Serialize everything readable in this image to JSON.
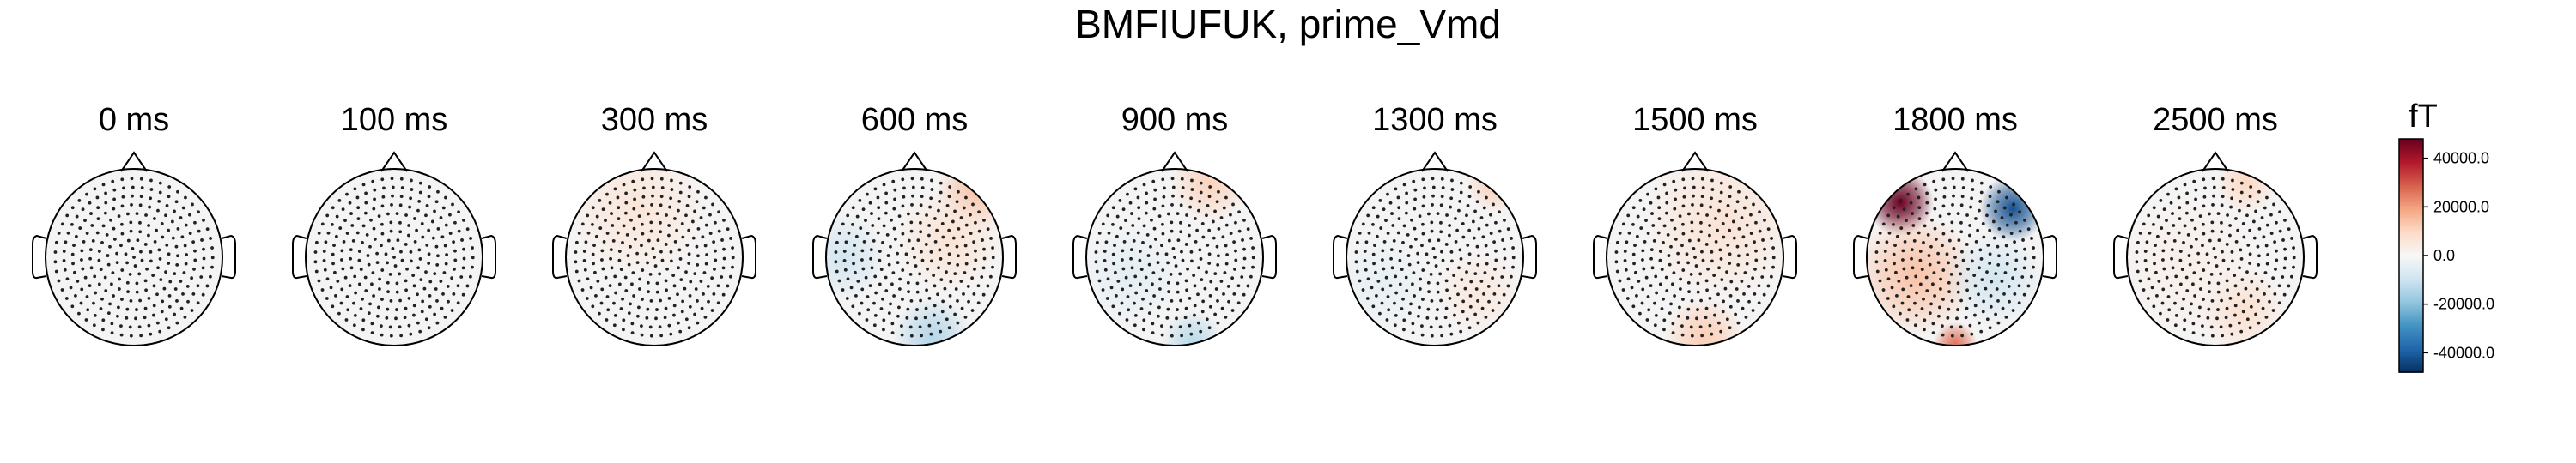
{
  "chart_data": {
    "type": "topomap",
    "title": "BMFIUFUK, prime_Vmd",
    "times": [
      "0 ms",
      "100 ms",
      "300 ms",
      "600 ms",
      "900 ms",
      "1300 ms",
      "1500 ms",
      "1800 ms",
      "2500 ms"
    ],
    "colorbar": {
      "unit": "fT",
      "colormap": "RdBu_r",
      "range": [
        -48000,
        48000
      ],
      "ticks": [
        "40000.0",
        "20000.0",
        "0.0",
        "-20000.0",
        "-40000.0"
      ],
      "tick_values": [
        40000,
        20000,
        0,
        -20000,
        -40000
      ]
    },
    "maps": [
      {
        "time": "0 ms",
        "blobs": []
      },
      {
        "time": "100 ms",
        "blobs": []
      },
      {
        "time": "300 ms",
        "blobs": [
          {
            "u": -0.2,
            "v": -0.55,
            "value": 6000,
            "spread": 0.8
          }
        ]
      },
      {
        "time": "600 ms",
        "blobs": [
          {
            "u": 0.7,
            "v": -0.75,
            "value": 14000,
            "spread": 0.45
          },
          {
            "u": 0.4,
            "v": -0.2,
            "value": 7000,
            "spread": 0.6
          },
          {
            "u": -0.8,
            "v": 0.0,
            "value": -9000,
            "spread": 0.5
          },
          {
            "u": 0.2,
            "v": 0.9,
            "value": -14000,
            "spread": 0.45
          }
        ]
      },
      {
        "time": "900 ms",
        "blobs": [
          {
            "u": 0.4,
            "v": -0.85,
            "value": 11000,
            "spread": 0.45
          },
          {
            "u": 0.2,
            "v": 0.95,
            "value": -13000,
            "spread": 0.35
          },
          {
            "u": -0.5,
            "v": 0.2,
            "value": -5000,
            "spread": 0.6
          }
        ]
      },
      {
        "time": "1300 ms",
        "blobs": [
          {
            "u": 0.7,
            "v": -0.85,
            "value": 12000,
            "spread": 0.35
          },
          {
            "u": 0.5,
            "v": 0.4,
            "value": 5000,
            "spread": 0.5
          },
          {
            "u": -0.6,
            "v": 0.3,
            "value": -4000,
            "spread": 0.6
          }
        ]
      },
      {
        "time": "1500 ms",
        "blobs": [
          {
            "u": 0.3,
            "v": -0.4,
            "value": 7000,
            "spread": 0.9
          },
          {
            "u": 0.1,
            "v": 0.9,
            "value": 12000,
            "spread": 0.45
          }
        ]
      },
      {
        "time": "1800 ms",
        "blobs": [
          {
            "u": -0.62,
            "v": -0.62,
            "value": 48000,
            "spread": 0.38
          },
          {
            "u": -0.45,
            "v": 0.2,
            "value": 14000,
            "spread": 0.7
          },
          {
            "u": 0.65,
            "v": -0.55,
            "value": -42000,
            "spread": 0.38
          },
          {
            "u": 0.45,
            "v": 0.25,
            "value": -9000,
            "spread": 0.55
          },
          {
            "u": 0.0,
            "v": 0.98,
            "value": 26000,
            "spread": 0.25
          }
        ]
      },
      {
        "time": "2500 ms",
        "blobs": [
          {
            "u": 0.35,
            "v": -0.85,
            "value": 10000,
            "spread": 0.35
          },
          {
            "u": 0.3,
            "v": 0.6,
            "value": 8000,
            "spread": 0.5
          },
          {
            "u": -0.3,
            "v": 0.1,
            "value": 3000,
            "spread": 0.8
          }
        ]
      }
    ]
  }
}
